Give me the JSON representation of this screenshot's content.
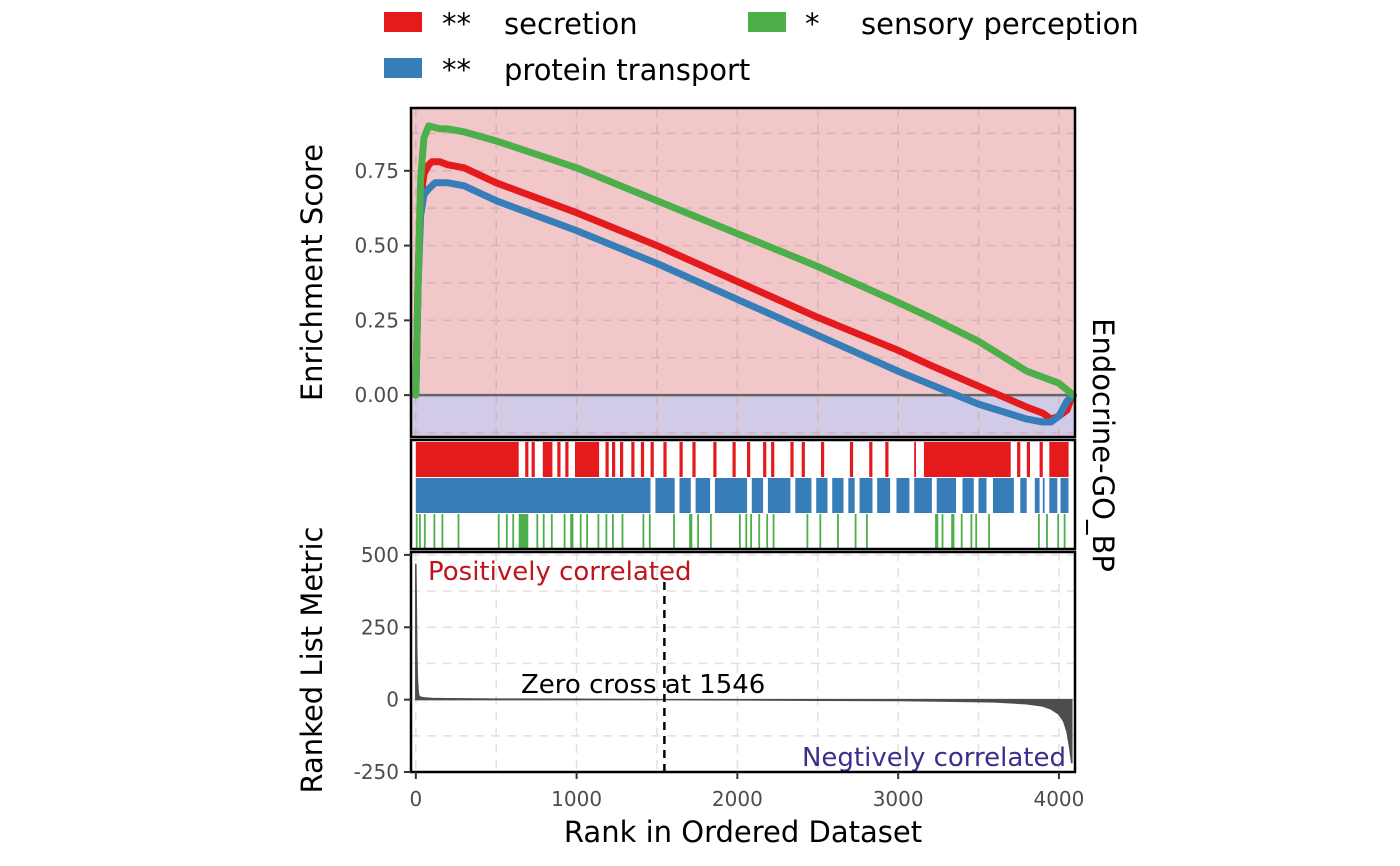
{
  "chart_data": {
    "type": "line",
    "strip_label": "Endocrine-GO_BP",
    "xlabel": "Rank in Ordered Dataset",
    "xlim": [
      -30,
      4100
    ],
    "x_ticks": [
      "0",
      "1000",
      "2000",
      "3000",
      "4000"
    ],
    "x_tick_values": [
      0,
      1000,
      2000,
      3000,
      4000
    ],
    "legend": {
      "placement": "top",
      "entries": [
        {
          "sig": "**",
          "name": "secretion",
          "color": "#E41A1C"
        },
        {
          "sig": "**",
          "name": "protein transport",
          "color": "#377EB8"
        },
        {
          "sig": "*",
          "name": "sensory perception",
          "color": "#4DAF4A"
        }
      ]
    },
    "es_panel": {
      "ylabel": "Enrichment Score",
      "ylim": [
        -0.14,
        0.96
      ],
      "y_ticks": [
        "0.00",
        "0.25",
        "0.50",
        "0.75"
      ],
      "y_tick_values": [
        0,
        0.25,
        0.5,
        0.75
      ],
      "positive_region_color": "#F2C7C9",
      "negative_region_color": "#D1CBE7",
      "zero_line_color": "#666666",
      "series": [
        {
          "name": "secretion",
          "color": "#E41A1C",
          "x": [
            0,
            15,
            30,
            50,
            80,
            100,
            150,
            200,
            300,
            500,
            1000,
            1500,
            2000,
            2500,
            3000,
            3200,
            3500,
            3800,
            3900,
            3950,
            4000,
            4050,
            4070,
            4090
          ],
          "y": [
            0,
            0.4,
            0.65,
            0.74,
            0.77,
            0.78,
            0.78,
            0.77,
            0.76,
            0.71,
            0.61,
            0.5,
            0.38,
            0.26,
            0.15,
            0.1,
            0.03,
            -0.04,
            -0.06,
            -0.08,
            -0.07,
            -0.05,
            -0.02,
            0
          ]
        },
        {
          "name": "protein transport",
          "color": "#377EB8",
          "x": [
            0,
            15,
            30,
            50,
            80,
            120,
            150,
            200,
            300,
            500,
            1000,
            1500,
            2000,
            2500,
            3000,
            3500,
            3800,
            3900,
            3950,
            4000,
            4050,
            4090
          ],
          "y": [
            0,
            0.38,
            0.6,
            0.67,
            0.69,
            0.71,
            0.71,
            0.71,
            0.7,
            0.65,
            0.55,
            0.44,
            0.32,
            0.2,
            0.08,
            -0.03,
            -0.08,
            -0.09,
            -0.09,
            -0.07,
            -0.02,
            0
          ]
        },
        {
          "name": "sensory perception",
          "color": "#4DAF4A",
          "x": [
            0,
            15,
            30,
            50,
            80,
            150,
            200,
            300,
            500,
            1000,
            1500,
            2000,
            2500,
            3000,
            3200,
            3500,
            3800,
            4000,
            4090
          ],
          "y": [
            0,
            0.4,
            0.72,
            0.86,
            0.9,
            0.89,
            0.89,
            0.88,
            0.85,
            0.76,
            0.65,
            0.54,
            0.43,
            0.31,
            0.26,
            0.18,
            0.08,
            0.04,
            0
          ]
        }
      ]
    },
    "hits_panel": {
      "rows": [
        {
          "name": "secretion",
          "color": "#E41A1C",
          "ranges": [
            [
              0,
              640
            ],
            [
              680,
              700
            ],
            [
              720,
              740
            ],
            [
              790,
              850
            ],
            [
              880,
              900
            ],
            [
              930,
              950
            ],
            [
              990,
              1140
            ],
            [
              1180,
              1200
            ],
            [
              1220,
              1240
            ],
            [
              1270,
              1290
            ],
            [
              1340,
              1360
            ],
            [
              1400,
              1420
            ],
            [
              1460,
              1480
            ],
            [
              1540,
              1560
            ],
            [
              1640,
              1660
            ],
            [
              1720,
              1740
            ],
            [
              1850,
              1870
            ],
            [
              1970,
              1990
            ],
            [
              2060,
              2080
            ],
            [
              2160,
              2180
            ],
            [
              2210,
              2230
            ],
            [
              2330,
              2350
            ],
            [
              2400,
              2420
            ],
            [
              2520,
              2540
            ],
            [
              2700,
              2720
            ],
            [
              2820,
              2840
            ],
            [
              2920,
              2940
            ],
            [
              3100,
              3110
            ],
            [
              3160,
              3700
            ],
            [
              3740,
              3760
            ],
            [
              3800,
              3820
            ],
            [
              3880,
              3900
            ],
            [
              3940,
              4060
            ]
          ]
        },
        {
          "name": "protein transport",
          "color": "#377EB8",
          "ranges": [
            [
              0,
              1460
            ],
            [
              1490,
              1610
            ],
            [
              1640,
              1710
            ],
            [
              1740,
              1830
            ],
            [
              1860,
              2060
            ],
            [
              2090,
              2160
            ],
            [
              2190,
              2330
            ],
            [
              2360,
              2460
            ],
            [
              2490,
              2560
            ],
            [
              2590,
              2660
            ],
            [
              2690,
              2730
            ],
            [
              2760,
              2840
            ],
            [
              2870,
              2950
            ],
            [
              2990,
              3070
            ],
            [
              3100,
              3210
            ],
            [
              3240,
              3360
            ],
            [
              3400,
              3470
            ],
            [
              3500,
              3550
            ],
            [
              3590,
              3720
            ],
            [
              3760,
              3800
            ],
            [
              3850,
              3880
            ],
            [
              3900,
              3910
            ],
            [
              3940,
              3990
            ],
            [
              4010,
              4060
            ]
          ]
        },
        {
          "name": "sensory perception",
          "color": "#4DAF4A",
          "ranges": [
            [
              0,
              10
            ],
            [
              20,
              30
            ],
            [
              50,
              60
            ],
            [
              110,
              120
            ],
            [
              160,
              170
            ],
            [
              260,
              270
            ],
            [
              510,
              520
            ],
            [
              560,
              570
            ],
            [
              600,
              610
            ],
            [
              640,
              700
            ],
            [
              750,
              760
            ],
            [
              790,
              800
            ],
            [
              840,
              850
            ],
            [
              920,
              930
            ],
            [
              960,
              980
            ],
            [
              1020,
              1030
            ],
            [
              1060,
              1070
            ],
            [
              1130,
              1140
            ],
            [
              1180,
              1190
            ],
            [
              1220,
              1230
            ],
            [
              1280,
              1290
            ],
            [
              1410,
              1420
            ],
            [
              1450,
              1460
            ],
            [
              1600,
              1610
            ],
            [
              1700,
              1720
            ],
            [
              1750,
              1760
            ],
            [
              1830,
              1840
            ],
            [
              2010,
              2020
            ],
            [
              2050,
              2060
            ],
            [
              2080,
              2090
            ],
            [
              2130,
              2140
            ],
            [
              2180,
              2190
            ],
            [
              2220,
              2230
            ],
            [
              2430,
              2440
            ],
            [
              2510,
              2520
            ],
            [
              2620,
              2630
            ],
            [
              2730,
              2740
            ],
            [
              2800,
              2810
            ],
            [
              3230,
              3250
            ],
            [
              3270,
              3280
            ],
            [
              3330,
              3350
            ],
            [
              3390,
              3400
            ],
            [
              3450,
              3460
            ],
            [
              3480,
              3490
            ],
            [
              3560,
              3570
            ],
            [
              3870,
              3880
            ],
            [
              3920,
              3930
            ],
            [
              3990,
              4000
            ],
            [
              4030,
              4040
            ]
          ]
        }
      ]
    },
    "metric_panel": {
      "ylabel": "Ranked List Metric",
      "ylim": [
        -250,
        510
      ],
      "y_ticks": [
        "-250",
        "0",
        "250",
        "500"
      ],
      "y_tick_values": [
        -250,
        0,
        250,
        500
      ],
      "fill_color": "#4D4D4D",
      "x": [
        0,
        3,
        6,
        10,
        15,
        20,
        30,
        50,
        100,
        200,
        500,
        1000,
        1546,
        2000,
        2500,
        3000,
        3300,
        3600,
        3800,
        3900,
        3950,
        4000,
        4030,
        4050,
        4065,
        4080
      ],
      "y": [
        470,
        330,
        160,
        70,
        25,
        12,
        8,
        6,
        4,
        3,
        2,
        1,
        0,
        -1,
        -2,
        -3,
        -5,
        -8,
        -14,
        -22,
        -32,
        -50,
        -75,
        -110,
        -160,
        -220
      ],
      "positive_label": "Positively correlated",
      "positive_color": "#C0141C",
      "negative_label": "Negtively correlated",
      "negative_color": "#3B2E8E",
      "zero_cross_label": "Zero cross at 1546",
      "zero_cross_x": 1546
    }
  }
}
